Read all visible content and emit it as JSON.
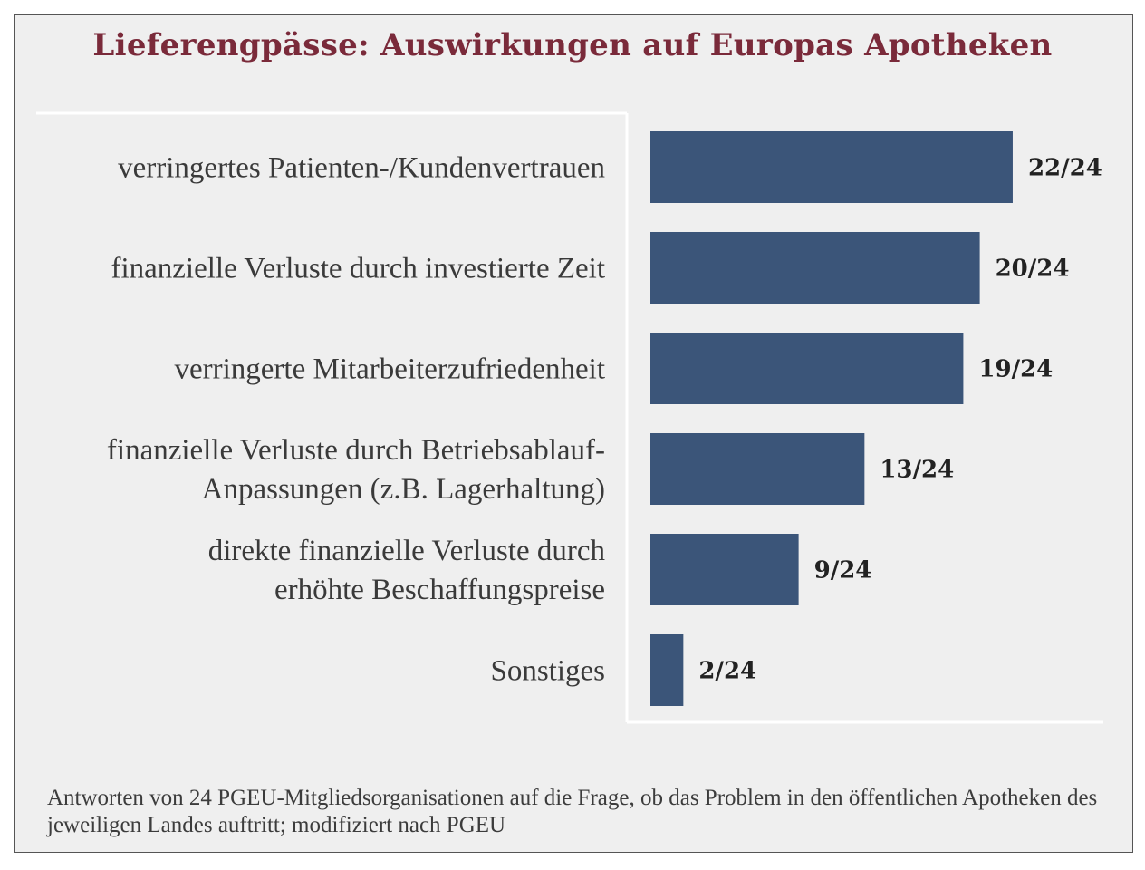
{
  "chart_data": {
    "type": "bar",
    "orientation": "horizontal",
    "title": "Lieferengpässe: Auswirkungen auf Europas Apotheken",
    "categories": [
      [
        "verringertes Patienten-/Kundenvertrauen"
      ],
      [
        "finanzielle Verluste durch investierte Zeit"
      ],
      [
        "verringerte Mitarbeiterzufriedenheit"
      ],
      [
        "finanzielle Verluste durch Betriebsablauf-",
        "Anpassungen (z.B. Lagerhaltung)"
      ],
      [
        "direkte finanzielle Verluste durch",
        "erhöhte Beschaffungspreise"
      ],
      [
        "Sonstiges"
      ]
    ],
    "values": [
      22,
      20,
      19,
      13,
      9,
      2
    ],
    "value_labels": [
      "22/24",
      "20/24",
      "19/24",
      "13/24",
      "9/24",
      "2/24"
    ],
    "xlim": [
      0,
      24
    ],
    "bar_color": "#3b5579",
    "title_color": "#7a2a3a",
    "grid": false,
    "legend": "none"
  },
  "footnote": "Antworten von 24 PGEU-Mitgliedsorganisationen auf die Frage, ob das Problem in den öffentlichen Apotheken des jeweiligen Landes auftritt; modifiziert nach PGEU"
}
